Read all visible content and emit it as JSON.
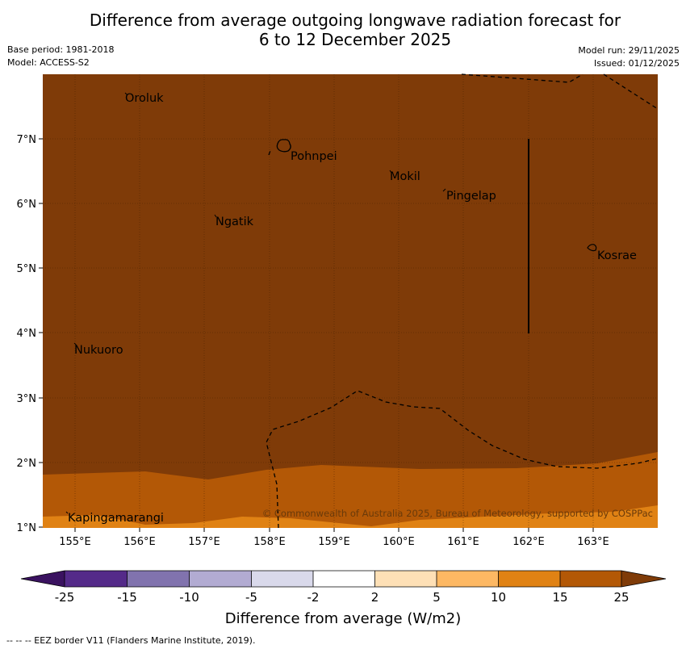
{
  "title": {
    "line1": "Difference from average outgoing longwave radiation forecast for",
    "line2": "6 to 12 December 2025"
  },
  "info": {
    "base_period": "Base period: 1981-2018",
    "model": "Model: ACCESS-S2",
    "model_run": "Model run: 29/11/2025",
    "issued": "Issued: 01/12/2025"
  },
  "axes": {
    "lon_ticks": [
      "155°E",
      "156°E",
      "157°E",
      "158°E",
      "159°E",
      "160°E",
      "161°E",
      "162°E",
      "163°E"
    ],
    "lat_ticks": [
      "7°N",
      "6°N",
      "5°N",
      "4°N",
      "3°N",
      "2°N",
      "1°N"
    ]
  },
  "places": [
    "Oroluk",
    "Pohnpei",
    "Mokil",
    "Pingelap",
    "Ngatik",
    "Kosrae",
    "Nukuoro",
    "Kapingamarangi"
  ],
  "copyright": "© Commonwealth of Australia 2025, Bureau of Meteorology, supported by COSPPac",
  "colorbar": {
    "labels": [
      "-25",
      "-15",
      "-10",
      "-5",
      "-2",
      "2",
      "5",
      "10",
      "15",
      "25"
    ],
    "colors": [
      "#3a1260",
      "#542a89",
      "#8173ae",
      "#b2abd2",
      "#d9d9eb",
      "#ffffff",
      "#fee0b6",
      "#fdb863",
      "#e08214",
      "#b35806",
      "#7f3b08"
    ],
    "title": "Difference from average (W/m2)"
  },
  "footer": "--  --  -- EEZ border V11 (Flanders Marine Institute, 2019)."
}
